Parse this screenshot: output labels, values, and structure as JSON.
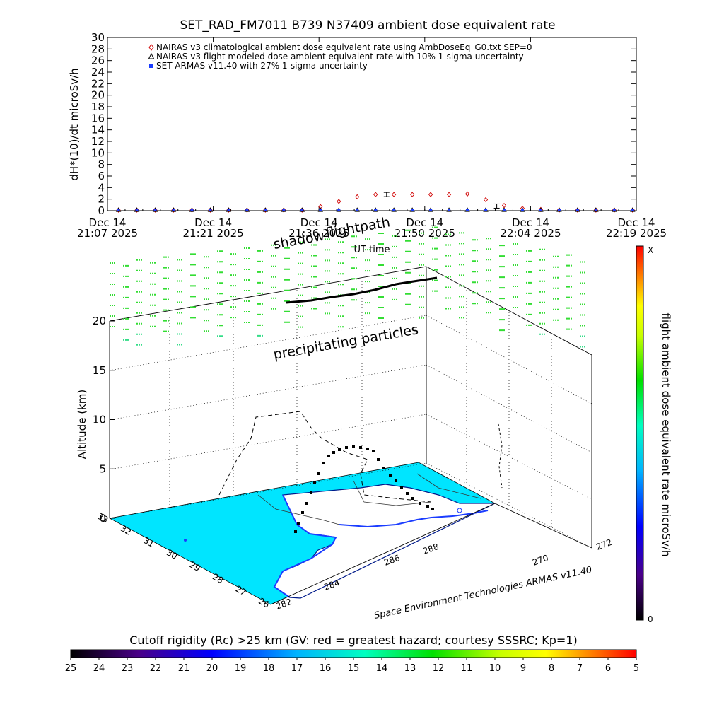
{
  "chart_data": [
    {
      "type": "scatter",
      "title": "SET_RAD_FM7011  B739 N37409 ambient dose equivalent rate",
      "xlabel": "UT time",
      "ylabel": "dH*(10)/dt microSv/h",
      "ylim": [
        0,
        30
      ],
      "y_ticks": [
        "0",
        "2",
        "4",
        "6",
        "8",
        "10",
        "12",
        "14",
        "16",
        "18",
        "20",
        "22",
        "24",
        "26",
        "28",
        "30"
      ],
      "x_ticks": [
        {
          "d": "Dec 14",
          "t": "21:07 2025"
        },
        {
          "d": "Dec 14",
          "t": "21:21 2025"
        },
        {
          "d": "Dec 14",
          "t": "21:36 2025"
        },
        {
          "d": "Dec 14",
          "t": "21:50 2025"
        },
        {
          "d": "Dec 14",
          "t": "22:04 2025"
        },
        {
          "d": "Dec 14",
          "t": "22:19 2025"
        }
      ],
      "x_range_minutes": [
        0,
        72
      ],
      "legend_position": "top-left",
      "legend": [
        "NAIRAS v3 climatological ambient dose equivalent rate using AmbDoseEq_G0.txt SEP=0",
        "NAIRAS v3 flight modeled dose ambient equivalent rate with 10% 1-sigma uncertainty",
        "SET ARMAS v11.40 with 27% 1-sigma uncertainty"
      ],
      "series": [
        {
          "name": "NAIRAS v3 climatological ambient dose equivalent rate using AmbDoseEq_G0.txt SEP=0",
          "marker": "diamond",
          "color": "#d00000",
          "x": [
            1.5,
            4,
            6.5,
            9,
            11.5,
            14,
            16.5,
            19,
            21.5,
            24,
            26.5,
            29,
            31.5,
            34,
            36.5,
            39,
            41.5,
            44,
            46.5,
            49,
            51.5,
            54,
            56.5,
            59,
            61.5,
            64,
            66.5,
            69,
            71.5
          ],
          "values": [
            0.1,
            0.1,
            0.1,
            0.1,
            0.1,
            0.1,
            0.1,
            0.1,
            0.1,
            0.1,
            0.1,
            0.7,
            1.6,
            2.4,
            2.8,
            2.8,
            2.8,
            2.8,
            2.8,
            2.9,
            1.9,
            0.9,
            0.4,
            0.2,
            0.1,
            0.1,
            0.1,
            0.1,
            0.1
          ]
        },
        {
          "name": "NAIRAS v3 flight modeled dose ambient equivalent rate with 10% 1-sigma uncertainty",
          "marker": "triangle",
          "color": "#000000",
          "x": [
            1.5,
            4,
            6.5,
            9,
            11.5,
            14,
            16.5,
            19,
            21.5,
            24,
            26.5,
            29,
            31.5,
            34,
            36.5,
            39,
            41.5,
            44,
            46.5,
            49,
            51.5,
            54,
            56.5,
            59,
            61.5,
            64,
            66.5,
            69,
            71.5
          ],
          "values": [
            0.1,
            0.1,
            0.1,
            0.1,
            0.1,
            0.1,
            0.1,
            0.1,
            0.1,
            0.1,
            0.1,
            0.1,
            0.1,
            0.1,
            0.1,
            0.1,
            0.1,
            0.1,
            0.1,
            0.1,
            0.1,
            0.1,
            0.1,
            0.1,
            0.1,
            0.1,
            0.1,
            0.1,
            0.1
          ],
          "errorbars": [
            {
              "x": 38,
              "value": 2.8
            },
            {
              "x": 53,
              "value": 0.8
            }
          ]
        },
        {
          "name": "SET ARMAS v11.40 with 27% 1-sigma uncertainty",
          "marker": "square",
          "color": "#1a3cff",
          "x": [
            1.5,
            4,
            6.5,
            9,
            11.5,
            14,
            16.5,
            19,
            21.5,
            24,
            26.5,
            29,
            31.5,
            34,
            36.5,
            39,
            41.5,
            44,
            46.5,
            49,
            51.5,
            54,
            56.5,
            59,
            61.5,
            64,
            66.5,
            69,
            71.5
          ],
          "values": [
            0.05,
            0.05,
            0.05,
            0.05,
            0.05,
            0.05,
            0.05,
            0.05,
            0.05,
            0.05,
            0.05,
            0.05,
            0.05,
            0.05,
            0.05,
            0.05,
            0.05,
            0.05,
            0.05,
            0.05,
            0.05,
            0.05,
            0.05,
            0.05,
            0.05,
            0.05,
            0.05,
            0.05,
            0.05
          ]
        }
      ]
    },
    {
      "type": "scatter",
      "z_label": "Altitude (km)",
      "z_ticks": [
        "0",
        "5",
        "10",
        "15",
        "20"
      ],
      "lat_ticks": [
        "33",
        "32",
        "31",
        "30",
        "29",
        "28",
        "27",
        "26"
      ],
      "lon_ticks": [
        "282",
        "284",
        "286",
        "288",
        "270",
        "272"
      ],
      "annotations": [
        "shadow",
        "flightpath",
        "precipitating particles"
      ],
      "credit": "Space Environment Technologies ARMAS v11.40",
      "dose_colorbar": {
        "label": "flight ambient dose equivalent rate microSv/h",
        "min_label": "0",
        "max_label": "X"
      }
    },
    {
      "type": "heatmap",
      "title": "Cutoff rigidity (Rc) >25 km (GV: red = greatest hazard; courtesy SSSRC; Kp=1)",
      "ticks": [
        "25",
        "24",
        "23",
        "22",
        "21",
        "20",
        "19",
        "18",
        "17",
        "16",
        "15",
        "14",
        "13",
        "12",
        "11",
        "10",
        "9",
        "8",
        "7",
        "6",
        "5"
      ]
    }
  ],
  "colors": {
    "ocean": "#00e5ff",
    "particles": "#33dd33",
    "particles_low": "#33dd88",
    "nairas_clim": "#d00000",
    "armas": "#1a3cff"
  }
}
